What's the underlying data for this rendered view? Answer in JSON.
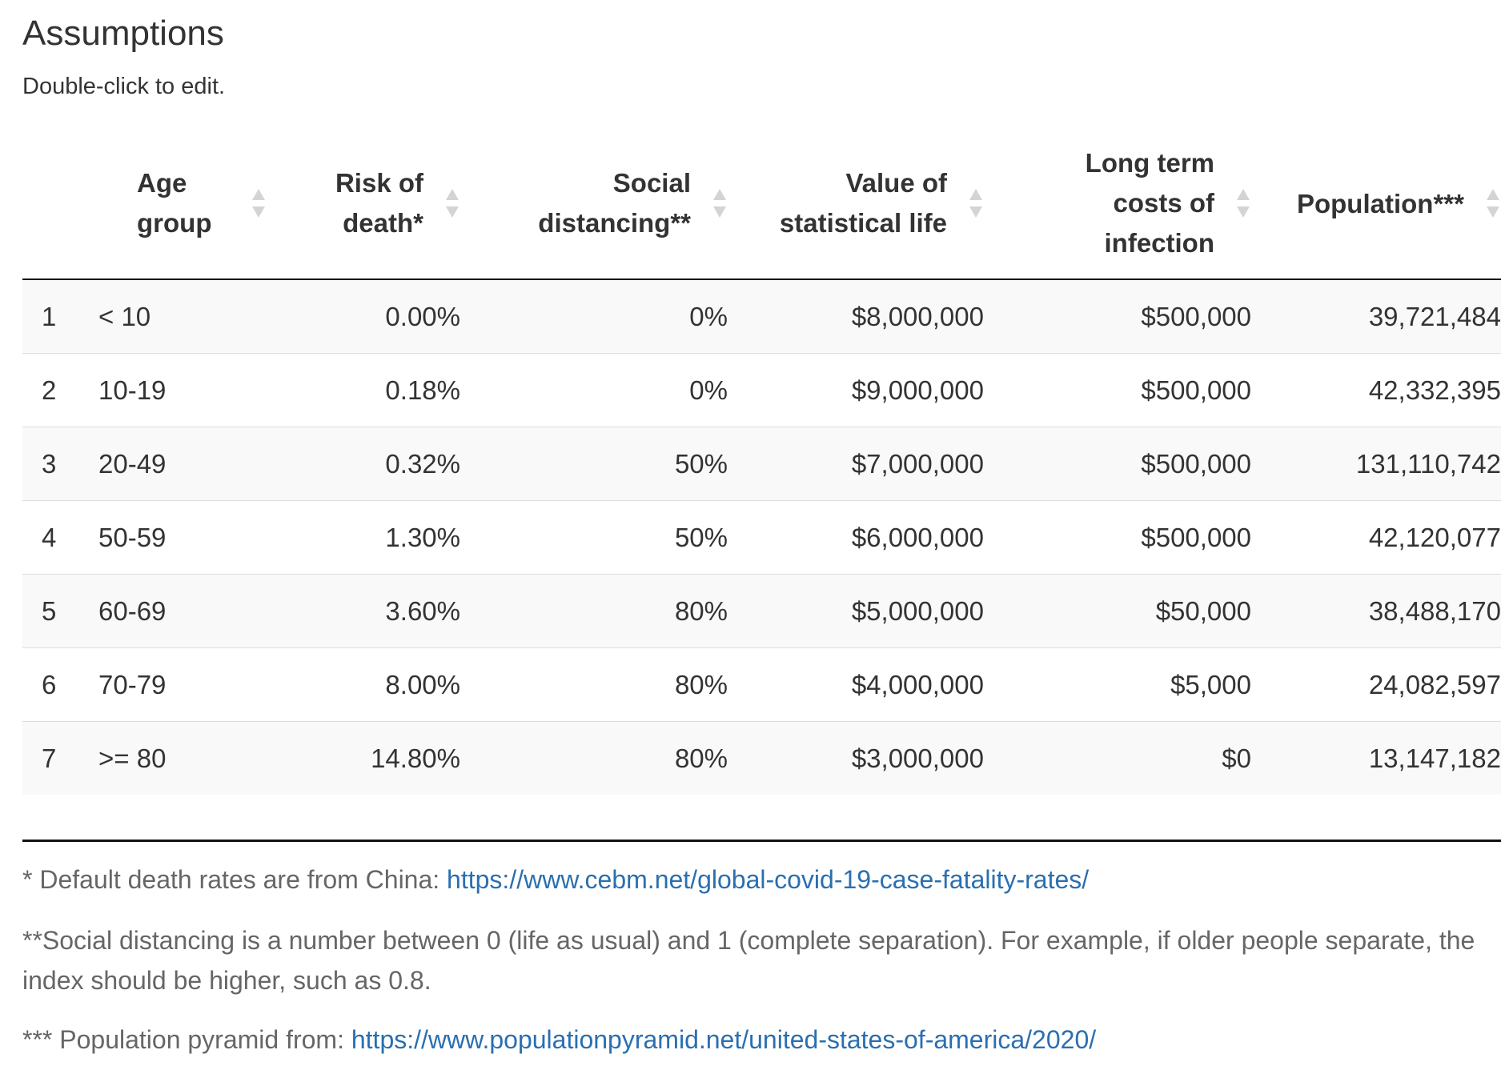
{
  "header": {
    "title": "Assumptions",
    "subtitle": "Double-click to edit."
  },
  "table": {
    "columns": [
      {
        "key": "index",
        "label": ""
      },
      {
        "key": "age_group",
        "label_lines": [
          "Age",
          "group"
        ]
      },
      {
        "key": "risk_of_death",
        "label_lines": [
          "Risk of",
          "death*"
        ]
      },
      {
        "key": "social_distancing",
        "label_lines": [
          "Social",
          "distancing**"
        ]
      },
      {
        "key": "value_of_statistical_life",
        "label_lines": [
          "Value of",
          "statistical life"
        ]
      },
      {
        "key": "long_term_costs",
        "label_lines": [
          "Long term",
          "costs of",
          "infection"
        ]
      },
      {
        "key": "population",
        "label_lines": [
          "Population***"
        ]
      }
    ],
    "rows": [
      {
        "index": "1",
        "age_group": "< 10",
        "risk_of_death": "0.00%",
        "social_distancing": "0%",
        "value_of_statistical_life": "$8,000,000",
        "long_term_costs": "$500,000",
        "population": "39,721,484"
      },
      {
        "index": "2",
        "age_group": "10-19",
        "risk_of_death": "0.18%",
        "social_distancing": "0%",
        "value_of_statistical_life": "$9,000,000",
        "long_term_costs": "$500,000",
        "population": "42,332,395"
      },
      {
        "index": "3",
        "age_group": "20-49",
        "risk_of_death": "0.32%",
        "social_distancing": "50%",
        "value_of_statistical_life": "$7,000,000",
        "long_term_costs": "$500,000",
        "population": "131,110,742"
      },
      {
        "index": "4",
        "age_group": "50-59",
        "risk_of_death": "1.30%",
        "social_distancing": "50%",
        "value_of_statistical_life": "$6,000,000",
        "long_term_costs": "$500,000",
        "population": "42,120,077"
      },
      {
        "index": "5",
        "age_group": "60-69",
        "risk_of_death": "3.60%",
        "social_distancing": "80%",
        "value_of_statistical_life": "$5,000,000",
        "long_term_costs": "$50,000",
        "population": "38,488,170"
      },
      {
        "index": "6",
        "age_group": "70-79",
        "risk_of_death": "8.00%",
        "social_distancing": "80%",
        "value_of_statistical_life": "$4,000,000",
        "long_term_costs": "$5,000",
        "population": "24,082,597"
      },
      {
        "index": "7",
        "age_group": ">= 80",
        "risk_of_death": "14.80%",
        "social_distancing": "80%",
        "value_of_statistical_life": "$3,000,000",
        "long_term_costs": "$0",
        "population": "13,147,182"
      }
    ]
  },
  "notes": {
    "note1_prefix": "* Default death rates are from China: ",
    "note1_link": "https://www.cebm.net/global-covid-19-case-fatality-rates/",
    "note2": "**Social distancing is a number between 0 (life as usual) and 1 (complete separation). For example, if older people separate, the index should be higher, such as 0.8.",
    "note3_prefix": "*** Population pyramid from: ",
    "note3_link": "https://www.populationpyramid.net/united-states-of-america/2020/"
  },
  "colors": {
    "link": "#2a6fb0",
    "row_striped": "#f9f9f9",
    "text": "#333333",
    "muted_text": "#666666"
  },
  "icons": {
    "sort": "sort-both-icon"
  }
}
